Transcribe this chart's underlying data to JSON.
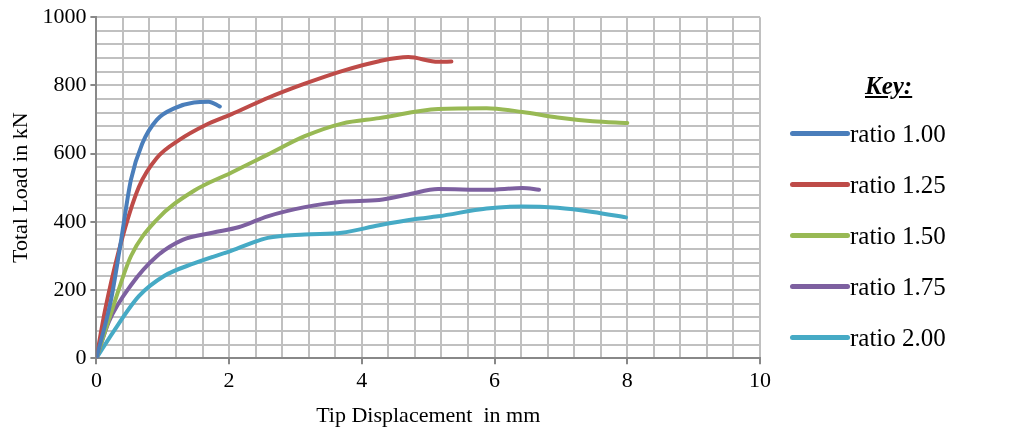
{
  "chart_data": {
    "type": "line",
    "xlabel": "Tip Displacement  in mm",
    "ylabel": "Total Load in kN",
    "legend_title": "Key:",
    "legend": "right",
    "grid": true,
    "marker": "none",
    "line_style": "solid",
    "xlim": [
      0,
      10
    ],
    "ylim": [
      0,
      1000
    ],
    "xticks": [
      0,
      {
        "value": 0.4,
        "label": null
      },
      {
        "value": 0.8,
        "label": null
      },
      {
        "value": 1.2,
        "label": null
      },
      {
        "value": 1.6,
        "label": null
      },
      2,
      {
        "value": 2.4,
        "label": null
      },
      {
        "value": 2.8,
        "label": null
      },
      {
        "value": 3.2,
        "label": null
      },
      {
        "value": 3.6,
        "label": null
      },
      4,
      {
        "value": 4.4,
        "label": null
      },
      {
        "value": 4.8,
        "label": null
      },
      {
        "value": 5.2,
        "label": null
      },
      {
        "value": 5.6,
        "label": null
      },
      6,
      {
        "value": 6.4,
        "label": null
      },
      {
        "value": 6.8,
        "label": null
      },
      {
        "value": 7.2,
        "label": null
      },
      {
        "value": 7.6,
        "label": null
      },
      8,
      {
        "value": 8.4,
        "label": null
      },
      {
        "value": 8.8,
        "label": null
      },
      {
        "value": 9.2,
        "label": null
      },
      {
        "value": 9.6,
        "label": null
      },
      10
    ],
    "yticks": [
      0,
      {
        "value": 40,
        "label": null
      },
      {
        "value": 80,
        "label": null
      },
      {
        "value": 120,
        "label": null
      },
      {
        "value": 160,
        "label": null
      },
      200,
      {
        "value": 240,
        "label": null
      },
      {
        "value": 280,
        "label": null
      },
      {
        "value": 320,
        "label": null
      },
      {
        "value": 360,
        "label": null
      },
      400,
      {
        "value": 440,
        "label": null
      },
      {
        "value": 480,
        "label": null
      },
      {
        "value": 520,
        "label": null
      },
      {
        "value": 560,
        "label": null
      },
      600,
      {
        "value": 640,
        "label": null
      },
      {
        "value": 680,
        "label": null
      },
      {
        "value": 720,
        "label": null
      },
      {
        "value": 760,
        "label": null
      },
      800,
      {
        "value": 840,
        "label": null
      },
      {
        "value": 880,
        "label": null
      },
      {
        "value": 920,
        "label": null
      },
      {
        "value": 960,
        "label": null
      },
      1000
    ],
    "series": [
      {
        "name": "ratio 1.00",
        "color": "#4a7ebb",
        "x": [
          0,
          0.22,
          0.36,
          0.52,
          0.69,
          0.91,
          1.19,
          1.47,
          1.69,
          1.86
        ],
        "values": [
          0,
          171,
          331,
          523,
          629,
          699,
          734,
          750,
          752,
          738
        ]
      },
      {
        "name": "ratio 1.25",
        "color": "#be4b48",
        "x": [
          0,
          0.13,
          0.36,
          0.64,
          0.91,
          1.25,
          1.64,
          2.03,
          2.58,
          3.14,
          3.7,
          4.26,
          4.7,
          5.15,
          5.35
        ],
        "values": [
          0,
          140,
          331,
          502,
          587,
          640,
          683,
          715,
          763,
          805,
          842,
          871,
          883,
          869,
          870
        ]
      },
      {
        "name": "ratio 1.50",
        "color": "#98b954",
        "x": [
          0,
          0.25,
          0.52,
          0.91,
          1.47,
          2.03,
          2.58,
          3.14,
          3.7,
          4.26,
          5.15,
          5.88,
          6.42,
          6.95,
          7.48,
          8.0
        ],
        "values": [
          0,
          150,
          299,
          406,
          491,
          544,
          597,
          651,
          688,
          704,
          731,
          733,
          722,
          706,
          695,
          690
        ]
      },
      {
        "name": "ratio 1.75",
        "color": "#7d60a0",
        "x": [
          0,
          0.19,
          0.52,
          0.91,
          1.3,
          1.75,
          2.14,
          2.58,
          3.14,
          3.7,
          4.26,
          4.7,
          5.15,
          5.88,
          6.42,
          6.67
        ],
        "values": [
          0,
          108,
          214,
          299,
          347,
          368,
          384,
          416,
          443,
          459,
          464,
          480,
          496,
          494,
          499,
          494
        ]
      },
      {
        "name": "ratio 2.00",
        "color": "#46aac5",
        "x": [
          0,
          0.25,
          0.64,
          1.02,
          1.47,
          2.03,
          2.58,
          3.14,
          3.7,
          4.26,
          4.81,
          5.15,
          5.88,
          6.42,
          6.95,
          7.48,
          7.98
        ],
        "values": [
          0,
          76,
          182,
          241,
          278,
          315,
          353,
          363,
          368,
          390,
          408,
          416,
          439,
          445,
          441,
          429,
          413
        ]
      }
    ]
  }
}
